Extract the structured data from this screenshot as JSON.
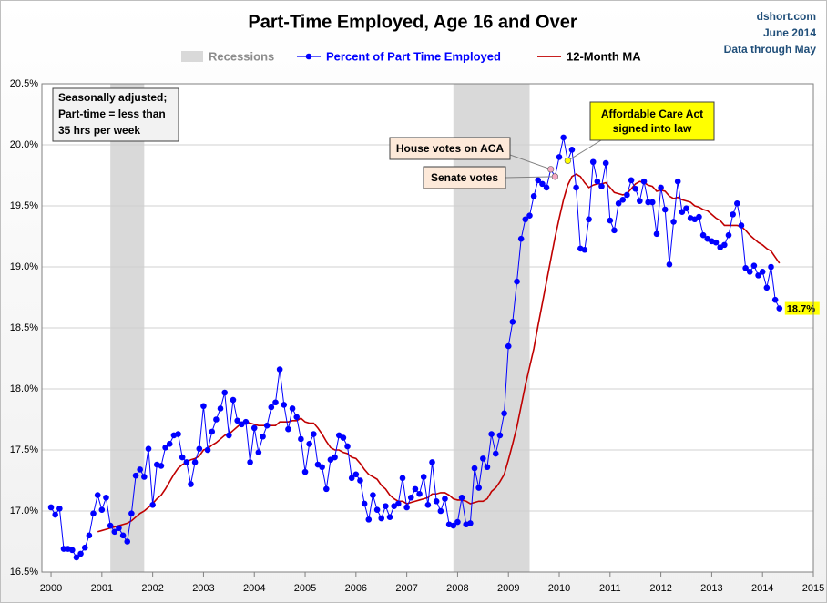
{
  "chart_data": {
    "type": "line",
    "title": "Part-Time Employed, Age 16 and Over",
    "source": [
      "dshort.com",
      "June 2014",
      "Data through May"
    ],
    "note": [
      "Seasonally adjusted;",
      "Part-time = less than",
      "35 hrs per week"
    ],
    "xlim": [
      1999.82,
      2015
    ],
    "xticks": [
      2000,
      2001,
      2002,
      2003,
      2004,
      2005,
      2006,
      2007,
      2008,
      2009,
      2010,
      2011,
      2012,
      2013,
      2014,
      2015
    ],
    "ylim": [
      16.5,
      20.5
    ],
    "yticks": [
      {
        "value": 16.5,
        "label": "16.5%"
      },
      {
        "value": 17,
        "label": "17.0%"
      },
      {
        "value": 17.5,
        "label": "17.5%"
      },
      {
        "value": 18,
        "label": "18.0%"
      },
      {
        "value": 18.5,
        "label": "18.5%"
      },
      {
        "value": 19,
        "label": "19.0%"
      },
      {
        "value": 19.5,
        "label": "19.5%"
      },
      {
        "value": 20,
        "label": "20.0%"
      },
      {
        "value": 20.5,
        "label": "20.5%"
      }
    ],
    "grid": true,
    "recessions": {
      "name": "Recessions",
      "color": "#d9d9d9",
      "spans": [
        [
          2001.167,
          2001.833
        ],
        [
          2007.917,
          2009.417
        ]
      ]
    },
    "x": [
      2000,
      2000.083,
      2000.167,
      2000.25,
      2000.333,
      2000.417,
      2000.5,
      2000.583,
      2000.667,
      2000.75,
      2000.833,
      2000.917,
      2001,
      2001.083,
      2001.167,
      2001.25,
      2001.333,
      2001.417,
      2001.5,
      2001.583,
      2001.667,
      2001.75,
      2001.833,
      2001.917,
      2002,
      2002.083,
      2002.167,
      2002.25,
      2002.333,
      2002.417,
      2002.5,
      2002.583,
      2002.667,
      2002.75,
      2002.833,
      2002.917,
      2003,
      2003.083,
      2003.167,
      2003.25,
      2003.333,
      2003.417,
      2003.5,
      2003.583,
      2003.667,
      2003.75,
      2003.833,
      2003.917,
      2004,
      2004.083,
      2004.167,
      2004.25,
      2004.333,
      2004.417,
      2004.5,
      2004.583,
      2004.667,
      2004.75,
      2004.833,
      2004.917,
      2005,
      2005.083,
      2005.167,
      2005.25,
      2005.333,
      2005.417,
      2005.5,
      2005.583,
      2005.667,
      2005.75,
      2005.833,
      2005.917,
      2006,
      2006.083,
      2006.167,
      2006.25,
      2006.333,
      2006.417,
      2006.5,
      2006.583,
      2006.667,
      2006.75,
      2006.833,
      2006.917,
      2007,
      2007.083,
      2007.167,
      2007.25,
      2007.333,
      2007.417,
      2007.5,
      2007.583,
      2007.667,
      2007.75,
      2007.833,
      2007.917,
      2008,
      2008.083,
      2008.167,
      2008.25,
      2008.333,
      2008.417,
      2008.5,
      2008.583,
      2008.667,
      2008.75,
      2008.833,
      2008.917,
      2009,
      2009.083,
      2009.167,
      2009.25,
      2009.333,
      2009.417,
      2009.5,
      2009.583,
      2009.667,
      2009.75,
      2009.833,
      2009.917,
      2010,
      2010.083,
      2010.167,
      2010.25,
      2010.333,
      2010.417,
      2010.5,
      2010.583,
      2010.667,
      2010.75,
      2010.833,
      2010.917,
      2011,
      2011.083,
      2011.167,
      2011.25,
      2011.333,
      2011.417,
      2011.5,
      2011.583,
      2011.667,
      2011.75,
      2011.833,
      2011.917,
      2012,
      2012.083,
      2012.167,
      2012.25,
      2012.333,
      2012.417,
      2012.5,
      2012.583,
      2012.667,
      2012.75,
      2012.833,
      2012.917,
      2013,
      2013.083,
      2013.167,
      2013.25,
      2013.333,
      2013.417,
      2013.5,
      2013.583,
      2013.667,
      2013.75,
      2013.833,
      2013.917,
      2014,
      2014.083,
      2014.167,
      2014.25,
      2014.333
    ],
    "series": [
      {
        "name": "Percent of Part Time Employed",
        "color": "#0000ff",
        "values": [
          17.03,
          16.97,
          17.02,
          16.69,
          16.69,
          16.68,
          16.62,
          16.65,
          16.7,
          16.8,
          16.98,
          17.13,
          17.01,
          17.11,
          16.88,
          16.83,
          16.86,
          16.8,
          16.75,
          16.98,
          17.29,
          17.34,
          17.28,
          17.51,
          17.05,
          17.38,
          17.37,
          17.52,
          17.55,
          17.62,
          17.63,
          17.44,
          17.4,
          17.22,
          17.4,
          17.51,
          17.86,
          17.5,
          17.65,
          17.75,
          17.84,
          17.97,
          17.62,
          17.91,
          17.74,
          17.71,
          17.73,
          17.4,
          17.68,
          17.48,
          17.61,
          17.7,
          17.85,
          17.89,
          18.16,
          17.87,
          17.67,
          17.84,
          17.77,
          17.59,
          17.32,
          17.55,
          17.63,
          17.38,
          17.36,
          17.18,
          17.42,
          17.44,
          17.62,
          17.6,
          17.53,
          17.27,
          17.3,
          17.25,
          17.06,
          16.93,
          17.13,
          17.01,
          16.94,
          17.04,
          16.95,
          17.04,
          17.06,
          17.27,
          17.03,
          17.11,
          17.18,
          17.14,
          17.28,
          17.05,
          17.4,
          17.08,
          17.0,
          17.1,
          16.89,
          16.88,
          16.91,
          17.11,
          16.89,
          16.9,
          17.35,
          17.19,
          17.43,
          17.36,
          17.63,
          17.47,
          17.62,
          17.8,
          18.35,
          18.55,
          18.88,
          19.23,
          19.39,
          19.42,
          19.58,
          19.71,
          19.68,
          19.65,
          19.8,
          19.74,
          19.9,
          20.06,
          19.87,
          19.96,
          19.65,
          19.15,
          19.14,
          19.39,
          19.86,
          19.7,
          19.66,
          19.85,
          19.38,
          19.3,
          19.52,
          19.55,
          19.59,
          19.71,
          19.64,
          19.54,
          19.7,
          19.53,
          19.53,
          19.27,
          19.65,
          19.47,
          19.02,
          19.37,
          19.7,
          19.45,
          19.48,
          19.4,
          19.39,
          19.41,
          19.26,
          19.23,
          19.21,
          19.2,
          19.16,
          19.18,
          19.26,
          19.43,
          19.52,
          19.34,
          18.99,
          18.96,
          19.01,
          18.93,
          18.96,
          18.83,
          19.0,
          18.73,
          18.66
        ],
        "value_labels": [
          null,
          null,
          null,
          null,
          null,
          null,
          null,
          null,
          null,
          null,
          null,
          null,
          null,
          null,
          null,
          null,
          null,
          null,
          null,
          null,
          null,
          null,
          null,
          null,
          null,
          null,
          null,
          null,
          null,
          null,
          null,
          null,
          null,
          null,
          null,
          null,
          null,
          null,
          null,
          null,
          null,
          null,
          null,
          null,
          null,
          null,
          null,
          null,
          null,
          null,
          null,
          null,
          null,
          null,
          null,
          null,
          null,
          null,
          null,
          null,
          null,
          null,
          null,
          null,
          null,
          null,
          null,
          null,
          null,
          null,
          null,
          null,
          null,
          null,
          null,
          null,
          null,
          null,
          null,
          null,
          null,
          null,
          null,
          null,
          null,
          null,
          null,
          null,
          null,
          null,
          null,
          null,
          null,
          null,
          null,
          null,
          null,
          null,
          null,
          null,
          null,
          null,
          null,
          null,
          null,
          null,
          null,
          null,
          null,
          null,
          null,
          null,
          null,
          null,
          null,
          null,
          null,
          null,
          null,
          null,
          null,
          null,
          null,
          null,
          null,
          null,
          null,
          null,
          null,
          null,
          null,
          null,
          null,
          null,
          null,
          null,
          null,
          null,
          null,
          null,
          null,
          null,
          null,
          null,
          null,
          null,
          null,
          null,
          null,
          null,
          null,
          null,
          null,
          null,
          null,
          null,
          null,
          null,
          null,
          null,
          null,
          null,
          null,
          null,
          null,
          null,
          null,
          null,
          null,
          null,
          null,
          null,
          "18.7%"
        ]
      },
      {
        "name": "12-Month MA",
        "color": "#c00000",
        "values": [
          null,
          null,
          null,
          null,
          null,
          null,
          null,
          null,
          null,
          null,
          null,
          16.83,
          16.84,
          16.85,
          16.86,
          16.87,
          16.88,
          16.89,
          16.9,
          16.92,
          16.95,
          16.98,
          17.0,
          17.03,
          17.06,
          17.1,
          17.13,
          17.18,
          17.24,
          17.3,
          17.35,
          17.38,
          17.4,
          17.42,
          17.43,
          17.45,
          17.5,
          17.51,
          17.54,
          17.56,
          17.59,
          17.62,
          17.63,
          17.66,
          17.69,
          17.72,
          17.73,
          17.72,
          17.71,
          17.7,
          17.7,
          17.7,
          17.7,
          17.7,
          17.73,
          17.73,
          17.73,
          17.74,
          17.74,
          17.76,
          17.73,
          17.72,
          17.72,
          17.68,
          17.63,
          17.57,
          17.52,
          17.5,
          17.5,
          17.48,
          17.47,
          17.44,
          17.43,
          17.39,
          17.34,
          17.3,
          17.28,
          17.26,
          17.21,
          17.18,
          17.13,
          17.1,
          17.08,
          17.08,
          17.06,
          17.07,
          17.08,
          17.09,
          17.1,
          17.11,
          17.14,
          17.14,
          17.15,
          17.15,
          17.13,
          17.1,
          17.09,
          17.09,
          17.08,
          17.06,
          17.07,
          17.08,
          17.08,
          17.1,
          17.16,
          17.19,
          17.24,
          17.3,
          17.42,
          17.55,
          17.69,
          17.86,
          18.03,
          18.18,
          18.33,
          18.52,
          18.7,
          18.88,
          19.06,
          19.24,
          19.4,
          19.55,
          19.67,
          19.74,
          19.76,
          19.74,
          19.69,
          19.65,
          19.67,
          19.68,
          19.68,
          19.69,
          19.65,
          19.61,
          19.6,
          19.59,
          19.6,
          19.64,
          19.68,
          19.7,
          19.69,
          19.67,
          19.66,
          19.62,
          19.63,
          19.62,
          19.58,
          19.56,
          19.57,
          19.55,
          19.54,
          19.53,
          19.5,
          19.49,
          19.47,
          19.46,
          19.43,
          19.4,
          19.38,
          19.34,
          19.34,
          19.34,
          19.34,
          19.33,
          19.3,
          19.26,
          19.23,
          19.2,
          19.18,
          19.15,
          19.13,
          19.08,
          19.03
        ]
      }
    ],
    "annotations": [
      {
        "text": [
          "House votes on ACA"
        ],
        "x": 2009.833,
        "y": 19.8,
        "color": "#f4a6c0"
      },
      {
        "text": [
          "Senate votes"
        ],
        "x": 2009.917,
        "y": 19.74,
        "color": "#f4a6c0"
      },
      {
        "text": [
          "Affordable Care Act",
          "signed into law"
        ],
        "x": 2010.167,
        "y": 19.87,
        "color": "#ffff00"
      }
    ]
  }
}
